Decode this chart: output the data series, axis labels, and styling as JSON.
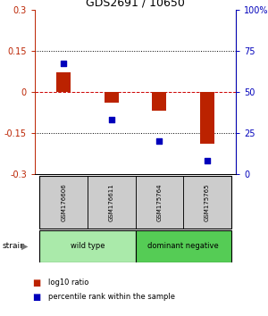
{
  "title": "GDS2691 / 10650",
  "samples": [
    "GSM176606",
    "GSM176611",
    "GSM175764",
    "GSM175765"
  ],
  "log10_ratio": [
    0.07,
    -0.04,
    -0.07,
    -0.19
  ],
  "percentile_rank": [
    67,
    33,
    20,
    8
  ],
  "groups": [
    {
      "label": "wild type",
      "indices": [
        0,
        1
      ],
      "color": "#aaeaaa"
    },
    {
      "label": "dominant negative",
      "indices": [
        2,
        3
      ],
      "color": "#55cc55"
    }
  ],
  "strain_label": "strain",
  "ylim": [
    -0.3,
    0.3
  ],
  "yticks_left": [
    -0.3,
    -0.15,
    0,
    0.15,
    0.3
  ],
  "yticks_right": [
    0,
    25,
    50,
    75,
    100
  ],
  "bar_color": "#bb2200",
  "dot_color": "#0000bb",
  "hline_color": "#cc0000",
  "grid_color": "#000000",
  "background_color": "#ffffff",
  "sample_box_color": "#cccccc",
  "bar_width": 0.3
}
